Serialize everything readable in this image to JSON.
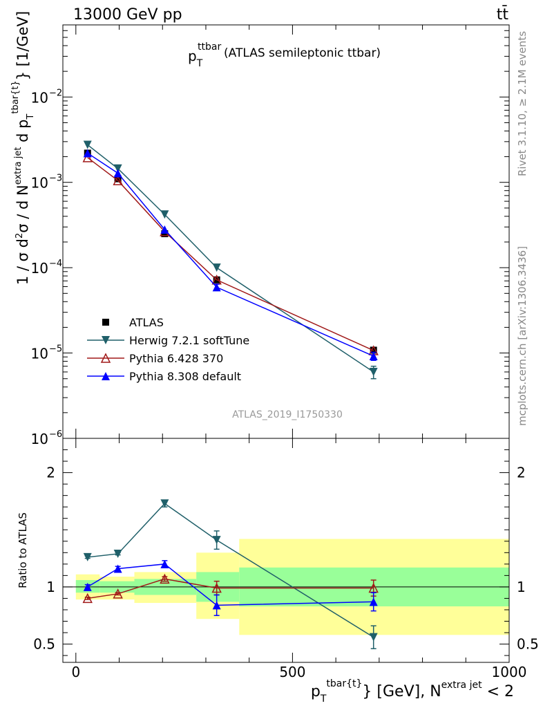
{
  "header": {
    "left": "13000 GeV pp",
    "right": "tt̄"
  },
  "side_labels": {
    "rivet": "Rivet 3.1.10, ≥ 2.1M events",
    "mcplots": "mcplots.cern.ch [arXiv:1306.3436]"
  },
  "colors": {
    "herwig": "#1f5f69",
    "pythia6": "#a01919",
    "pythia8": "#0000ff",
    "band_inner": "#99ff99",
    "band_outer": "#ffff99"
  },
  "chart_data": [
    {
      "type": "scatter",
      "panel": "main",
      "title_main": "p",
      "title_sub": "T",
      "title_sup": "ttbar",
      "title_rest": "(ATLAS semileptonic ttbar)",
      "watermark": "ATLAS_2019_I1750330",
      "ylabel": "1 / σ d²σ / d N^{extra jet} d p_T^{tbar{t}} [1/GeV]",
      "ylabel_parts": {
        "a": "1 / σ d",
        "b": "σ / d N",
        "c": "extra jet",
        "d": " d p",
        "e": "T",
        "f": "tbar{t}",
        "g": "} [1/GeV]"
      },
      "yscale": "log",
      "ylim": [
        1e-06,
        0.07
      ],
      "xlim": [
        -30,
        1000
      ],
      "y_ticks": [
        {
          "value": 1e-06,
          "mant": "10",
          "exp": "−6"
        },
        {
          "value": 1e-05,
          "mant": "10",
          "exp": "−5"
        },
        {
          "value": 0.0001,
          "mant": "10",
          "exp": "−4"
        },
        {
          "value": 0.001,
          "mant": "10",
          "exp": "−3"
        },
        {
          "value": 0.01,
          "mant": "10",
          "exp": "−2"
        }
      ],
      "legend_position": "lower-left",
      "series": [
        {
          "name": "ATLAS",
          "marker": "square",
          "color": "#000000",
          "x": [
            27,
            97,
            205,
            325,
            687
          ],
          "y": [
            0.0022,
            0.0011,
            0.00025,
            7.2e-05,
            1.08e-05
          ],
          "yerr": [
            0,
            0,
            0,
            0,
            0
          ]
        },
        {
          "name": "Herwig 7.2.1 softTune",
          "marker": "triangle-down",
          "color": "#1f5f69",
          "x": [
            27,
            97,
            205,
            325,
            687
          ],
          "y": [
            0.00275,
            0.00145,
            0.00042,
            0.0001,
            6e-06
          ],
          "yerr": [
            0,
            0,
            0,
            0,
            1e-06
          ]
        },
        {
          "name": "Pythia 6.428 370",
          "marker": "triangle-up-open",
          "color": "#a01919",
          "x": [
            27,
            97,
            205,
            325,
            687
          ],
          "y": [
            0.00195,
            0.00105,
            0.000265,
            7.2e-05,
            1.07e-05
          ],
          "yerr": [
            0,
            0,
            0,
            0,
            0
          ]
        },
        {
          "name": "Pythia 8.308 default",
          "marker": "triangle-up",
          "color": "#0000ff",
          "x": [
            27,
            97,
            205,
            325,
            687
          ],
          "y": [
            0.0022,
            0.00128,
            0.00028,
            5.9e-05,
            9.2e-06
          ],
          "yerr": [
            0,
            0,
            0,
            5e-06,
            1e-06
          ]
        }
      ]
    },
    {
      "type": "scatter",
      "panel": "ratio",
      "ylabel": "Ratio to ATLAS",
      "ylim": [
        0.34,
        2.3
      ],
      "xlim": [
        -30,
        1000
      ],
      "y_ticks": [
        {
          "value": 0.5,
          "label": "0.5"
        },
        {
          "value": 1,
          "label": "1"
        },
        {
          "value": 2,
          "label": "2"
        }
      ],
      "x_ticks": [
        {
          "value": 0,
          "label": "0"
        },
        {
          "value": 500,
          "label": "500"
        },
        {
          "value": 1000,
          "label": "1000"
        }
      ],
      "xlabel_parts": {
        "p": "p",
        "sub": "T",
        "sup": "tbar{t}",
        "mid": "} [GeV], N",
        "sup2": "extra jet",
        "end": " < 2"
      },
      "bands": [
        {
          "x0": 0,
          "x1": 55,
          "inner": [
            0.95,
            1.06
          ],
          "outer": [
            0.89,
            1.11
          ]
        },
        {
          "x0": 55,
          "x1": 135,
          "inner": [
            0.95,
            1.05
          ],
          "outer": [
            0.89,
            1.09
          ]
        },
        {
          "x0": 135,
          "x1": 278,
          "inner": [
            0.93,
            1.07
          ],
          "outer": [
            0.86,
            1.13
          ]
        },
        {
          "x0": 278,
          "x1": 377,
          "inner": [
            0.87,
            1.13
          ],
          "outer": [
            0.72,
            1.3
          ]
        },
        {
          "x0": 377,
          "x1": 1000,
          "inner": [
            0.83,
            1.17
          ],
          "outer": [
            0.58,
            1.42
          ]
        }
      ],
      "series": [
        {
          "name": "Herwig 7.2.1 softTune",
          "marker": "triangle-down",
          "color": "#1f5f69",
          "x": [
            27,
            97,
            205,
            325,
            687
          ],
          "y": [
            1.26,
            1.29,
            1.73,
            1.41,
            0.56
          ],
          "yerr": [
            0.01,
            0.01,
            0.03,
            0.08,
            0.1
          ]
        },
        {
          "name": "Pythia 6.428 370",
          "marker": "triangle-up-open",
          "color": "#a01919",
          "x": [
            27,
            97,
            205,
            325,
            687
          ],
          "y": [
            0.9,
            0.94,
            1.07,
            0.99,
            0.99
          ],
          "yerr": [
            0.01,
            0.01,
            0.02,
            0.06,
            0.07
          ]
        },
        {
          "name": "Pythia 8.308 default",
          "marker": "triangle-up",
          "color": "#0000ff",
          "x": [
            27,
            97,
            205,
            325,
            687
          ],
          "y": [
            1.0,
            1.16,
            1.2,
            0.84,
            0.87
          ],
          "yerr": [
            0.02,
            0.02,
            0.03,
            0.09,
            0.08
          ]
        }
      ]
    }
  ]
}
